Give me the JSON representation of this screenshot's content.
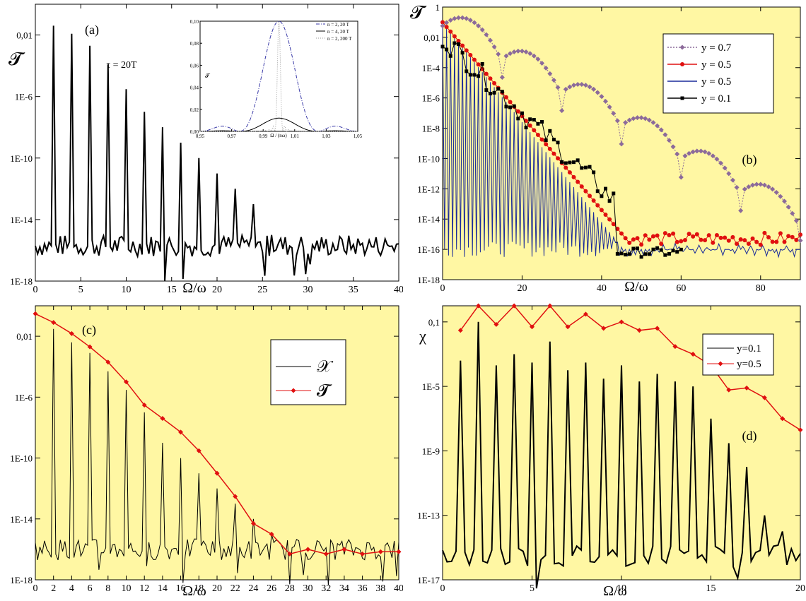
{
  "chart_data": [
    {
      "type": "line",
      "panel_label": "(a)",
      "ylabel": "𝓣",
      "xlabel": "Ω/ω",
      "annotation": "τ = 20T",
      "yscale": "log",
      "xlim": [
        0,
        40
      ],
      "ylim": [
        1e-18,
        1
      ],
      "xticks": [
        "0",
        "5",
        "10",
        "15",
        "20",
        "25",
        "30",
        "35",
        "40"
      ],
      "yticks": [
        "1E-18",
        "1E-14",
        "1E-10",
        "1E-6",
        "0,01"
      ],
      "background": "#ffffff",
      "series": [
        {
          "color": "#000000",
          "peaks_x": [
            2,
            4,
            6,
            8,
            10,
            12,
            14,
            16,
            18,
            20,
            22,
            24,
            26
          ],
          "peaks_y": [
            0.04,
            0.012,
            0.002,
            0.00012,
            3e-06,
            1e-07,
            1e-08,
            1e-09,
            1e-10,
            1e-11,
            1e-12,
            1e-13,
            1e-15
          ],
          "noise_level": 2e-16
        }
      ],
      "inset": {
        "xlabel": "Ω / (nω)",
        "ylabel": "𝓣",
        "xlim": [
          0.95,
          1.05
        ],
        "ylim": [
          0,
          0.1
        ],
        "xticks": [
          "0,95",
          "0,97",
          "0,99",
          "1,01",
          "1,03",
          "1,05"
        ],
        "yticks": [
          "0,00",
          "0,02",
          "0,04",
          "0,06",
          "0,08",
          "0,10"
        ],
        "legend": [
          "n = 2,  20 T",
          "n = 4,  20 T",
          "n = 2, 200 T"
        ],
        "series": [
          {
            "color": "#3a3aa8",
            "dash": "dashdot",
            "peak": 0.1,
            "width": 0.025
          },
          {
            "color": "#000000",
            "dash": "solid",
            "peak": 0.012,
            "width": 0.025
          },
          {
            "color": "#9a9a9a",
            "dash": "dotted",
            "peak": 0.1,
            "width": 0.0025
          }
        ]
      }
    },
    {
      "type": "line",
      "panel_label": "(b)",
      "ylabel": "𝓣",
      "xlabel": "Ω/ω",
      "yscale": "log",
      "xlim": [
        0,
        90
      ],
      "ylim": [
        1e-18,
        1
      ],
      "xticks": [
        "0",
        "20",
        "40",
        "60",
        "80"
      ],
      "yticks": [
        "1E-18",
        "1E-16",
        "1E-14",
        "1E-12",
        "1E-10",
        "1E-8",
        "1E-6",
        "1E-4",
        "0,01",
        "1"
      ],
      "background": "#fff7a3",
      "legend": [
        "y = 0.7",
        "y = 0.5",
        "y = 0.5",
        "y = 0.1"
      ],
      "series": [
        {
          "name": "y = 0.7",
          "color": "#8c6a9a",
          "marker": "diamond",
          "envelope_lobes_at": [
            15,
            30,
            45,
            60,
            75
          ],
          "start": 0.05
        },
        {
          "name": "y = 0.5",
          "color": "#e01010",
          "marker": "circle",
          "cutoff": 50
        },
        {
          "name": "y = 0.5",
          "color": "#1a2a9a",
          "marker": "none",
          "oscillating": true
        },
        {
          "name": "y = 0.1",
          "color": "#000000",
          "marker": "square",
          "cutoff": 45
        }
      ]
    },
    {
      "type": "line",
      "panel_label": "(c)",
      "xlabel": "Ω/ω",
      "yscale": "log",
      "xlim": [
        0,
        40
      ],
      "ylim": [
        1e-18,
        1
      ],
      "xticks": [
        "0",
        "2",
        "4",
        "6",
        "8",
        "10",
        "12",
        "14",
        "16",
        "18",
        "20",
        "22",
        "24",
        "26",
        "28",
        "30",
        "32",
        "34",
        "36",
        "38",
        "40"
      ],
      "yticks": [
        "1E-18",
        "1E-14",
        "1E-10",
        "1E-6",
        "0,01"
      ],
      "background": "#fff7a3",
      "legend": [
        "𝒳",
        "𝓣"
      ],
      "series": [
        {
          "name": "𝒳",
          "color": "#000000",
          "peaks_x": [
            2,
            4,
            6,
            8,
            10,
            12,
            14,
            16,
            18,
            20,
            22,
            24,
            26
          ],
          "peaks_y": [
            0.03,
            0.004,
            0.0008,
            5e-05,
            3e-06,
            1e-07,
            1e-09,
            1e-10,
            1e-11,
            1e-12,
            1e-13,
            1e-14,
            1e-15
          ],
          "noise_level": 1e-16
        },
        {
          "name": "𝓣",
          "color": "#e01010",
          "marker": "diamond",
          "x": [
            0,
            2,
            4,
            6,
            8,
            10,
            12,
            14,
            16,
            18,
            20,
            22,
            24,
            26,
            28,
            30,
            32,
            34,
            36,
            38,
            40
          ],
          "y": [
            0.3,
            0.08,
            0.015,
            0.002,
            0.0002,
            1e-05,
            3e-07,
            4e-08,
            5e-09,
            3e-10,
            1e-11,
            3e-13,
            5e-15,
            1e-15,
            5e-17,
            1e-16,
            5e-17,
            1e-16,
            5e-17,
            7e-17,
            7e-17
          ]
        }
      ]
    },
    {
      "type": "line",
      "panel_label": "(d)",
      "ylabel": "χ",
      "xlabel": "Ω/ω",
      "yscale": "log",
      "xlim": [
        0,
        20
      ],
      "ylim": [
        1e-17,
        1
      ],
      "xticks": [
        "0",
        "5",
        "10",
        "15",
        "20"
      ],
      "yticks": [
        "1E-17",
        "1E-13",
        "1E-9",
        "1E-5",
        "0,1"
      ],
      "background": "#fff7a3",
      "legend": [
        "y=0.1",
        "y=0.5"
      ],
      "series": [
        {
          "name": "y=0.1",
          "color": "#000000",
          "peaks_x": [
            1,
            2,
            3,
            4,
            5,
            6,
            7,
            8,
            9,
            10,
            11,
            12,
            13,
            14,
            15,
            16,
            17,
            18,
            19
          ],
          "peaks_y": [
            0.0004,
            0.1,
            0.0002,
            0.001,
            0.0003,
            0.006,
            0.0001,
            0.0003,
            3e-05,
            0.0002,
            2e-05,
            6e-05,
            2e-05,
            1e-05,
            1e-07,
            3e-09,
            1e-10,
            1e-13,
            1e-14
          ],
          "noise_level": 3e-16
        },
        {
          "name": "y=0.5",
          "color": "#e01010",
          "marker": "diamond",
          "x": [
            1,
            2,
            3,
            4,
            5,
            6,
            7,
            8,
            9,
            10,
            11,
            12,
            13,
            14,
            15,
            16,
            17,
            18,
            19,
            20
          ],
          "y": [
            0.03,
            1,
            0.07,
            1,
            0.05,
            1,
            0.05,
            0.3,
            0.04,
            0.1,
            0.03,
            0.04,
            0.003,
            0.001,
            0.0002,
            6e-06,
            8e-06,
            2e-06,
            1e-07,
            2e-08
          ]
        }
      ]
    }
  ]
}
